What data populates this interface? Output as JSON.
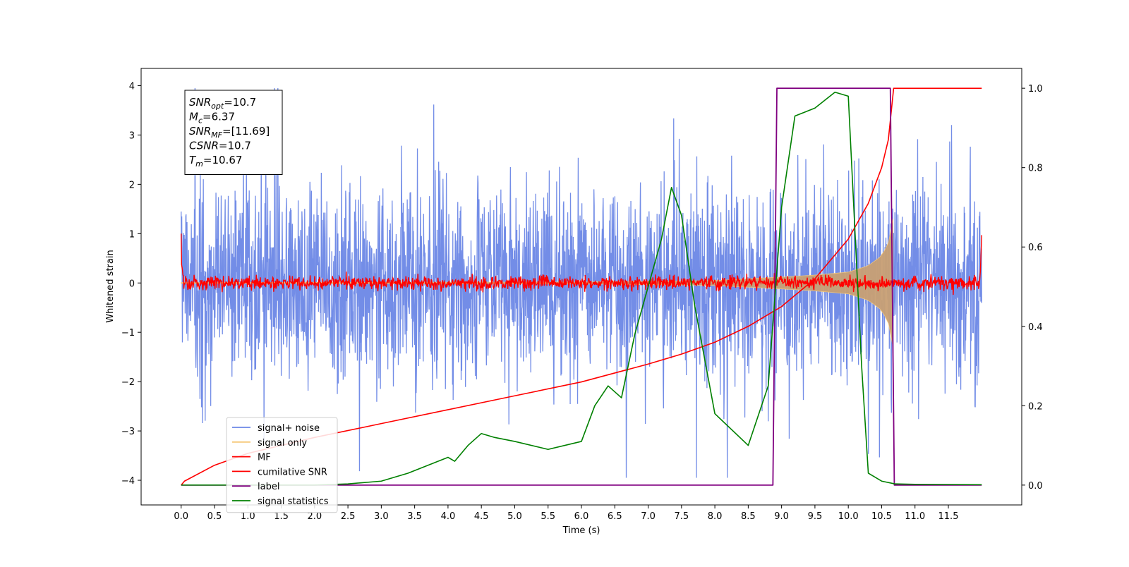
{
  "chart_data": {
    "type": "line",
    "xlabel": "Time (s)",
    "ylabel": "Whitened strain",
    "xlim": [
      -0.6,
      12.6
    ],
    "ylim": [
      -4.5,
      4.35
    ],
    "ylim_right": [
      -0.05,
      1.05
    ],
    "x_ticks": [
      0.0,
      0.5,
      1.0,
      1.5,
      2.0,
      2.5,
      3.0,
      3.5,
      4.0,
      4.5,
      5.0,
      5.5,
      6.0,
      6.5,
      7.0,
      7.5,
      8.0,
      8.5,
      9.0,
      9.5,
      10.0,
      10.5,
      11.0,
      11.5
    ],
    "x_tick_labels": [
      "0.0",
      "0.5",
      "1.0",
      "1.5",
      "2.0",
      "2.5",
      "3.0",
      "3.5",
      "4.0",
      "4.5",
      "5.0",
      "5.5",
      "6.0",
      "6.5",
      "7.0",
      "7.5",
      "8.0",
      "8.5",
      "9.0",
      "9.5",
      "10.0",
      "10.5",
      "11.0",
      "11.5"
    ],
    "y_ticks": [
      4,
      3,
      2,
      1,
      0,
      -1,
      -2,
      -3,
      -4
    ],
    "y_tick_labels": [
      "4",
      "3",
      "2",
      "1",
      "0",
      "−1",
      "−2",
      "−3",
      "−4"
    ],
    "y_right_ticks": [
      1.0,
      0.8,
      0.6,
      0.4,
      0.2,
      0.0
    ],
    "y_right_tick_labels": [
      "1.0",
      "0.8",
      "0.6",
      "0.4",
      "0.2",
      "0.0"
    ],
    "grid": false,
    "legend_position": "lower-left",
    "series": [
      {
        "name": "signal+ noise",
        "color": "#6b87e6",
        "axis": "left",
        "style": "noise band, amplitude about ±2, peaks near ±4",
        "x_range": [
          0.0,
          12.0
        ]
      },
      {
        "name": "signal only",
        "color": "#f5c878",
        "axis": "left",
        "style": "chirp envelope",
        "envelope": {
          "x": [
            0.0,
            6.0,
            8.0,
            9.0,
            9.5,
            10.0,
            10.3,
            10.5,
            10.6,
            10.67
          ],
          "y": [
            0.01,
            0.02,
            0.05,
            0.12,
            0.16,
            0.22,
            0.35,
            0.55,
            0.8,
            1.3
          ]
        }
      },
      {
        "name": "MF",
        "color": "#ff0000",
        "axis": "left",
        "style": "noisy trace around 0, amplitude about ±0.15",
        "x_range": [
          0.0,
          12.0
        ]
      },
      {
        "name": "cumilative SNR",
        "color": "#ff0000",
        "axis": "right",
        "x": [
          0.0,
          0.05,
          0.5,
          1.0,
          2.0,
          3.0,
          4.0,
          5.0,
          6.0,
          7.0,
          7.5,
          8.0,
          8.5,
          9.0,
          9.5,
          10.0,
          10.3,
          10.5,
          10.6,
          10.68,
          12.0
        ],
        "y": [
          0.0,
          0.01,
          0.05,
          0.08,
          0.12,
          0.155,
          0.19,
          0.225,
          0.26,
          0.305,
          0.33,
          0.36,
          0.4,
          0.45,
          0.52,
          0.62,
          0.71,
          0.8,
          0.87,
          1.0,
          1.0
        ]
      },
      {
        "name": "label",
        "color": "#800080",
        "axis": "right",
        "x": [
          0.0,
          8.87,
          8.93,
          10.63,
          10.69,
          12.0
        ],
        "y": [
          0.0,
          0.0,
          1.0,
          1.0,
          0.0,
          0.0
        ]
      },
      {
        "name": "signal statistics",
        "color": "#008000",
        "axis": "right",
        "x": [
          0.0,
          1.0,
          2.0,
          2.5,
          3.0,
          3.4,
          3.7,
          4.0,
          4.1,
          4.3,
          4.5,
          4.7,
          5.0,
          5.5,
          6.0,
          6.2,
          6.4,
          6.6,
          6.8,
          7.0,
          7.2,
          7.35,
          7.5,
          7.7,
          8.0,
          8.5,
          8.8,
          9.0,
          9.2,
          9.5,
          9.8,
          10.0,
          10.2,
          10.3,
          10.5,
          10.7,
          11.0,
          12.0
        ],
        "y": [
          0.0,
          0.0,
          0.0,
          0.003,
          0.01,
          0.03,
          0.05,
          0.07,
          0.06,
          0.1,
          0.13,
          0.12,
          0.11,
          0.09,
          0.11,
          0.2,
          0.25,
          0.22,
          0.38,
          0.5,
          0.62,
          0.75,
          0.68,
          0.45,
          0.18,
          0.1,
          0.25,
          0.7,
          0.93,
          0.95,
          0.99,
          0.98,
          0.3,
          0.03,
          0.01,
          0.003,
          0.002,
          0.001
        ]
      }
    ],
    "annotations": [
      {
        "text": "SNRopt=10.7",
        "main": "SNR",
        "sub": "opt",
        "value": "=10.7"
      },
      {
        "text": "Mc=6.37",
        "main": "M",
        "sub": "c",
        "value": "=6.37"
      },
      {
        "text": "SNRMF=[11.69]",
        "main": "SNR",
        "sub": "MF",
        "value": "=[11.69]"
      },
      {
        "text": "CSNR=10.7",
        "main": "CSNR",
        "sub": "",
        "value": "=10.7"
      },
      {
        "text": "Tm=10.67",
        "main": "T",
        "sub": "m",
        "value": "=10.67"
      }
    ]
  }
}
